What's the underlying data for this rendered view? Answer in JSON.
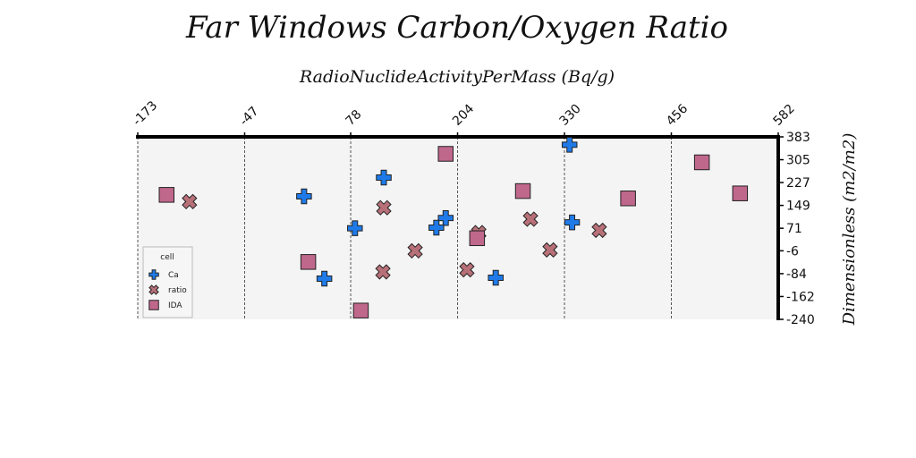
{
  "chart_data": {
    "type": "scatter",
    "title": "Far Windows Carbon/Oxygen Ratio",
    "xlabel": "RadioNuclideActivityPerMass (Bq/g)",
    "ylabel": "Dimensionless (m2/m2)",
    "x_axis_position": "top",
    "y_axis_position": "right",
    "xlim": [
      -173,
      582
    ],
    "ylim": [
      -240,
      383
    ],
    "x_ticks": [
      "-173",
      "-47",
      "78",
      "204",
      "330",
      "456",
      "582"
    ],
    "y_ticks": [
      "383",
      "305",
      "227",
      "149",
      "71",
      "-6",
      "-84",
      "-162",
      "-240"
    ],
    "x_grid": true,
    "y_grid": false,
    "background_color": "#f4f4f4",
    "legend": {
      "title": "cell",
      "position": "bottom-left"
    },
    "series": [
      {
        "name": "Ca",
        "marker": "plus",
        "color": "#1f7ae8",
        "points": [
          [
            336,
            356
          ],
          [
            23,
            180
          ],
          [
            117,
            244
          ],
          [
            339,
            91
          ],
          [
            190,
            106
          ],
          [
            179,
            73
          ],
          [
            83,
            71
          ],
          [
            47,
            -101
          ],
          [
            249,
            -98
          ]
        ]
      },
      {
        "name": "ratio",
        "marker": "x",
        "color": "#b87078",
        "points": [
          [
            -112,
            162
          ],
          [
            117,
            141
          ],
          [
            290,
            102
          ],
          [
            229,
            56
          ],
          [
            371,
            64
          ],
          [
            154,
            -6
          ],
          [
            313,
            -3
          ],
          [
            215,
            -71
          ],
          [
            116,
            -78
          ]
        ]
      },
      {
        "name": "IDA",
        "marker": "square",
        "color": "#c0678c",
        "points": [
          [
            -139,
            185
          ],
          [
            190,
            325
          ],
          [
            281,
            198
          ],
          [
            405,
            173
          ],
          [
            492,
            296
          ],
          [
            537,
            190
          ],
          [
            227,
            37
          ],
          [
            28,
            -44
          ],
          [
            90,
            -210
          ]
        ]
      }
    ]
  }
}
